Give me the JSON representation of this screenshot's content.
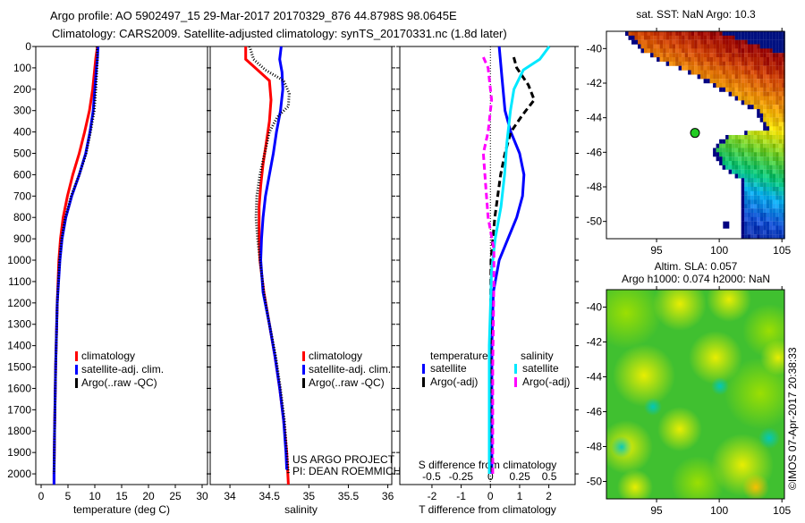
{
  "title": {
    "line1": "Argo profile: AO 5902497_15 29-Mar-2017 20170329_876 44.8798S 98.0645E",
    "line2": "Climatology: CARS2009. Satellite-adjusted climatology: synTS_20170331.nc (1.8d later)"
  },
  "colors": {
    "climatology": "#ff0000",
    "satellite": "#0000ff",
    "argo": "#000000",
    "sal_satellite": "#00e8ff",
    "sal_argo": "#ff00ff",
    "float": "#22cc22"
  },
  "credits": {
    "project": "US ARGO PROJECT",
    "pi": "PI: DEAN ROEMMICH",
    "stamp": "©IMOS 07-Apr-2017 20:38:33"
  },
  "chart_data": [
    {
      "type": "line",
      "name": "temperature",
      "xlabel": "temperature (deg C)",
      "ylabel": "",
      "xlim": [
        -1,
        31
      ],
      "ylim": [
        2050,
        0
      ],
      "xticks": [
        0,
        5,
        10,
        15,
        20,
        25,
        30
      ],
      "yticks": [
        0,
        100,
        200,
        300,
        400,
        500,
        600,
        700,
        800,
        900,
        1000,
        1100,
        1200,
        1300,
        1400,
        1500,
        1600,
        1700,
        1800,
        1900,
        2000
      ],
      "legend": [
        "climatology",
        "satellite-adj. clim.",
        "Argo(..raw -QC)"
      ],
      "series": [
        {
          "name": "climatology",
          "points": [
            [
              10.5,
              0
            ],
            [
              10.2,
              50
            ],
            [
              10,
              100
            ],
            [
              9.6,
              200
            ],
            [
              9,
              300
            ],
            [
              8.1,
              400
            ],
            [
              7.1,
              500
            ],
            [
              5.9,
              600
            ],
            [
              4.9,
              700
            ],
            [
              4.1,
              800
            ],
            [
              3.6,
              900
            ],
            [
              3.3,
              1000
            ],
            [
              3.0,
              1200
            ],
            [
              2.7,
              1500
            ],
            [
              2.5,
              1800
            ],
            [
              2.4,
              2000
            ],
            [
              2.4,
              2050
            ]
          ]
        },
        {
          "name": "satellite-adj. clim.",
          "points": [
            [
              10.6,
              0
            ],
            [
              10.5,
              50
            ],
            [
              10.3,
              100
            ],
            [
              10,
              200
            ],
            [
              9.7,
              300
            ],
            [
              9.1,
              400
            ],
            [
              8.3,
              500
            ],
            [
              7.1,
              600
            ],
            [
              5.7,
              700
            ],
            [
              4.6,
              800
            ],
            [
              3.9,
              900
            ],
            [
              3.5,
              1000
            ],
            [
              3.0,
              1200
            ],
            [
              2.7,
              1500
            ],
            [
              2.5,
              1800
            ],
            [
              2.4,
              2000
            ],
            [
              2.4,
              2050
            ]
          ]
        },
        {
          "name": "Argo(..raw -QC)",
          "points": [
            [
              10.4,
              0
            ],
            [
              10.5,
              50
            ],
            [
              10.4,
              100
            ],
            [
              10.2,
              200
            ],
            [
              9.9,
              300
            ],
            [
              9.2,
              400
            ],
            [
              8.4,
              500
            ],
            [
              7.1,
              600
            ],
            [
              5.6,
              700
            ],
            [
              4.5,
              800
            ],
            [
              3.8,
              900
            ],
            [
              3.4,
              1000
            ],
            [
              3.0,
              1200
            ],
            [
              2.7,
              1500
            ],
            [
              2.5,
              1800
            ],
            [
              2.4,
              2000
            ]
          ]
        }
      ]
    },
    {
      "type": "line",
      "name": "salinity",
      "xlabel": "salinity",
      "xlim": [
        33.75,
        36.05
      ],
      "ylim": [
        2050,
        0
      ],
      "xticks": [
        34,
        34.5,
        35,
        35.5,
        36
      ],
      "legend": [
        "climatology",
        "satellite-adj. clim.",
        "Argo(..raw -QC)"
      ],
      "series": [
        {
          "name": "climatology",
          "points": [
            [
              34.2,
              0
            ],
            [
              34.2,
              60
            ],
            [
              34.35,
              110
            ],
            [
              34.5,
              160
            ],
            [
              34.52,
              250
            ],
            [
              34.5,
              350
            ],
            [
              34.46,
              450
            ],
            [
              34.42,
              550
            ],
            [
              34.39,
              650
            ],
            [
              34.37,
              750
            ],
            [
              34.37,
              900
            ],
            [
              34.38,
              1000
            ],
            [
              34.43,
              1150
            ],
            [
              34.5,
              1300
            ],
            [
              34.57,
              1450
            ],
            [
              34.63,
              1600
            ],
            [
              34.68,
              1750
            ],
            [
              34.72,
              1900
            ],
            [
              34.74,
              2050
            ]
          ]
        },
        {
          "name": "satellite-adj. clim.",
          "points": [
            [
              34.65,
              0
            ],
            [
              34.63,
              60
            ],
            [
              34.66,
              120
            ],
            [
              34.67,
              200
            ],
            [
              34.64,
              300
            ],
            [
              34.59,
              400
            ],
            [
              34.55,
              500
            ],
            [
              34.5,
              600
            ],
            [
              34.45,
              700
            ],
            [
              34.42,
              800
            ],
            [
              34.4,
              900
            ],
            [
              34.39,
              1000
            ],
            [
              34.42,
              1150
            ],
            [
              34.5,
              1300
            ],
            [
              34.57,
              1450
            ],
            [
              34.63,
              1600
            ],
            [
              34.68,
              1750
            ],
            [
              34.71,
              1900
            ],
            [
              34.72,
              1980
            ]
          ]
        },
        {
          "name": "Argo(..raw -QC)",
          "points": [
            [
              34.25,
              0
            ],
            [
              34.3,
              60
            ],
            [
              34.45,
              110
            ],
            [
              34.68,
              160
            ],
            [
              34.75,
              220
            ],
            [
              34.74,
              280
            ],
            [
              34.6,
              330
            ],
            [
              34.5,
              400
            ],
            [
              34.44,
              500
            ],
            [
              34.38,
              600
            ],
            [
              34.34,
              700
            ],
            [
              34.33,
              800
            ],
            [
              34.35,
              900
            ],
            [
              34.38,
              1000
            ],
            [
              34.43,
              1150
            ],
            [
              34.5,
              1300
            ],
            [
              34.58,
              1450
            ],
            [
              34.64,
              1600
            ],
            [
              34.69,
              1750
            ],
            [
              34.72,
              1900
            ],
            [
              34.74,
              2000
            ]
          ]
        }
      ]
    },
    {
      "type": "line",
      "name": "difference",
      "xlabel": "T difference from climatology",
      "x2label": "S difference from climatology",
      "xlim": [
        -3.1,
        2.9
      ],
      "x2lim": [
        -0.77,
        0.72
      ],
      "xticks": [
        -2,
        -1,
        0,
        1,
        2
      ],
      "x2ticks": [
        "-0.5",
        "-0.25",
        "0",
        "0.25",
        "0.5"
      ],
      "legend": {
        "temperature_title": "temperature",
        "salinity_title": "salinity",
        "entries": [
          "satellite",
          "Argo(-adj)",
          "satellite",
          "Argo(-adj)"
        ]
      },
      "series": [
        {
          "name": "temperature satellite",
          "axis": "T",
          "points": [
            [
              0.3,
              0
            ],
            [
              0.4,
              150
            ],
            [
              0.5,
              300
            ],
            [
              0.7,
              400
            ],
            [
              1.0,
              500
            ],
            [
              1.15,
              600
            ],
            [
              1.1,
              700
            ],
            [
              0.9,
              800
            ],
            [
              0.6,
              900
            ],
            [
              0.3,
              1000
            ],
            [
              0.1,
              1150
            ],
            [
              0.05,
              1400
            ],
            [
              0.05,
              2000
            ]
          ]
        },
        {
          "name": "temperature Argo(-adj)",
          "axis": "T",
          "points": [
            [
              0.8,
              50
            ],
            [
              0.9,
              100
            ],
            [
              1.3,
              180
            ],
            [
              1.5,
              250
            ],
            [
              1.1,
              320
            ],
            [
              0.7,
              400
            ],
            [
              0.5,
              500
            ],
            [
              0.35,
              600
            ],
            [
              0.15,
              800
            ],
            [
              0.02,
              1000
            ],
            [
              0,
              1400
            ],
            [
              0,
              2000
            ]
          ]
        },
        {
          "name": "salinity satellite",
          "axis": "S",
          "points": [
            [
              0.5,
              0
            ],
            [
              0.42,
              60
            ],
            [
              0.28,
              110
            ],
            [
              0.2,
              200
            ],
            [
              0.17,
              300
            ],
            [
              0.14,
              450
            ],
            [
              0.12,
              600
            ],
            [
              0.09,
              750
            ],
            [
              0.04,
              900
            ],
            [
              0.01,
              1050
            ],
            [
              -0.01,
              1400
            ],
            [
              -0.01,
              2000
            ]
          ]
        },
        {
          "name": "salinity Argo(-adj)",
          "axis": "S",
          "points": [
            [
              -0.06,
              50
            ],
            [
              -0.02,
              100
            ],
            [
              0.01,
              250
            ],
            [
              -0.02,
              400
            ],
            [
              -0.06,
              500
            ],
            [
              -0.04,
              650
            ],
            [
              -0.02,
              800
            ],
            [
              0.03,
              950
            ],
            [
              0.03,
              1100
            ],
            [
              0.02,
              1500
            ],
            [
              0.02,
              2000
            ]
          ]
        }
      ]
    },
    {
      "type": "heatmap",
      "name": "satellite SST map",
      "title": "sat. SST: NaN Argo: 10.3",
      "xlim": [
        91,
        105.2
      ],
      "ylim": [
        -51,
        -39
      ],
      "xticks": [
        95,
        100,
        105
      ],
      "yticks": [
        -40,
        -42,
        -44,
        -46,
        -48,
        -50
      ],
      "float_position": [
        98.0645,
        -44.8798
      ]
    },
    {
      "type": "heatmap",
      "name": "altimetry SLA map",
      "title1": "Altim. SLA: 0.057",
      "title2": "Argo h1000: 0.074 h2000: NaN",
      "xlim": [
        91,
        105.2
      ],
      "ylim": [
        -51,
        -39
      ],
      "xticks": [
        95,
        100,
        105
      ],
      "yticks": [
        -40,
        -42,
        -44,
        -46,
        -48,
        -50
      ]
    }
  ]
}
